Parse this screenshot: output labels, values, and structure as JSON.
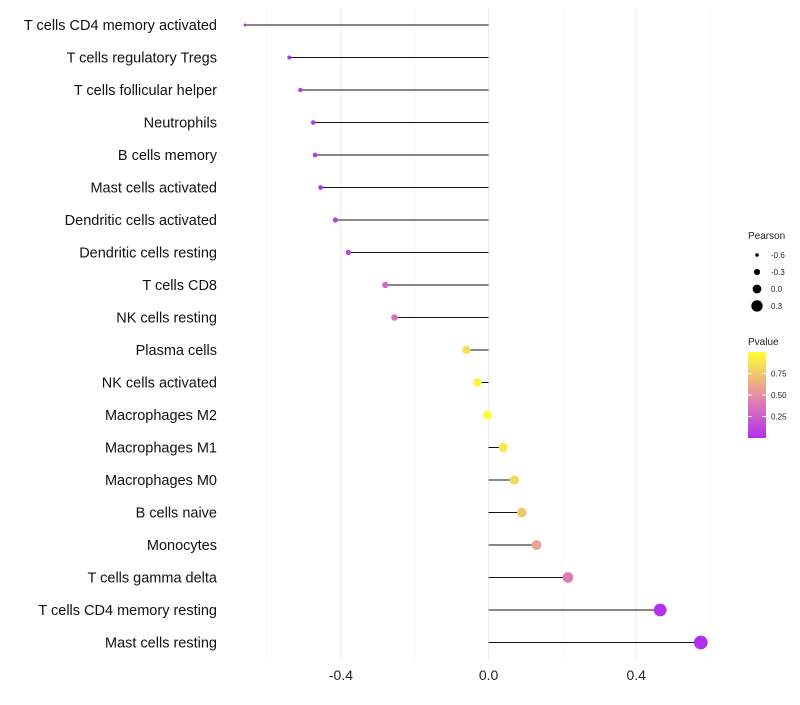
{
  "chart_data": {
    "type": "lollipop",
    "title": "",
    "xlabel": "",
    "ylabel": "",
    "xlim": [
      -0.66,
      0.6
    ],
    "x_ticks": [
      -0.4,
      0.0,
      0.4
    ],
    "x_tick_labels": [
      "-0.4",
      "0.0",
      "0.4"
    ],
    "categories": [
      "T cells CD4 memory activated",
      "T cells regulatory  Tregs",
      "T cells follicular helper",
      "Neutrophils",
      "B cells memory",
      "Mast cells activated",
      "Dendritic cells activated",
      "Dendritic cells resting",
      "T cells CD8",
      "NK cells resting",
      "Plasma cells",
      "NK cells activated",
      "Macrophages M2",
      "Macrophages M1",
      "Macrophages M0",
      "B cells naive",
      "Monocytes",
      "T cells gamma delta",
      "T cells CD4 memory resting",
      "Mast cells resting"
    ],
    "pearson": [
      -0.66,
      -0.54,
      -0.51,
      -0.475,
      -0.47,
      -0.455,
      -0.415,
      -0.38,
      -0.28,
      -0.255,
      -0.06,
      -0.03,
      -0.003,
      0.04,
      0.07,
      0.09,
      0.13,
      0.215,
      0.465,
      0.575
    ],
    "pvalue": [
      0.01,
      0.02,
      0.03,
      0.05,
      0.05,
      0.05,
      0.08,
      0.12,
      0.3,
      0.35,
      0.85,
      0.95,
      0.99,
      0.9,
      0.82,
      0.75,
      0.6,
      0.4,
      0.02,
      0.0
    ],
    "legend_size": {
      "title": "Pearson",
      "labels": [
        "-0.6",
        "-0.3",
        "0.0",
        "0.3"
      ],
      "values": [
        -0.6,
        -0.3,
        0.0,
        0.3
      ]
    },
    "legend_color": {
      "title": "Pvalue",
      "labels": [
        "0.75",
        "0.50",
        "0.25"
      ],
      "values": [
        0.75,
        0.5,
        0.25
      ],
      "range": [
        0.0,
        1.0
      ],
      "low_color": "#b12ff0",
      "mid_color": "#e58fa4",
      "high_color": "#ffff33"
    },
    "grid": true,
    "legend_position": "right"
  }
}
